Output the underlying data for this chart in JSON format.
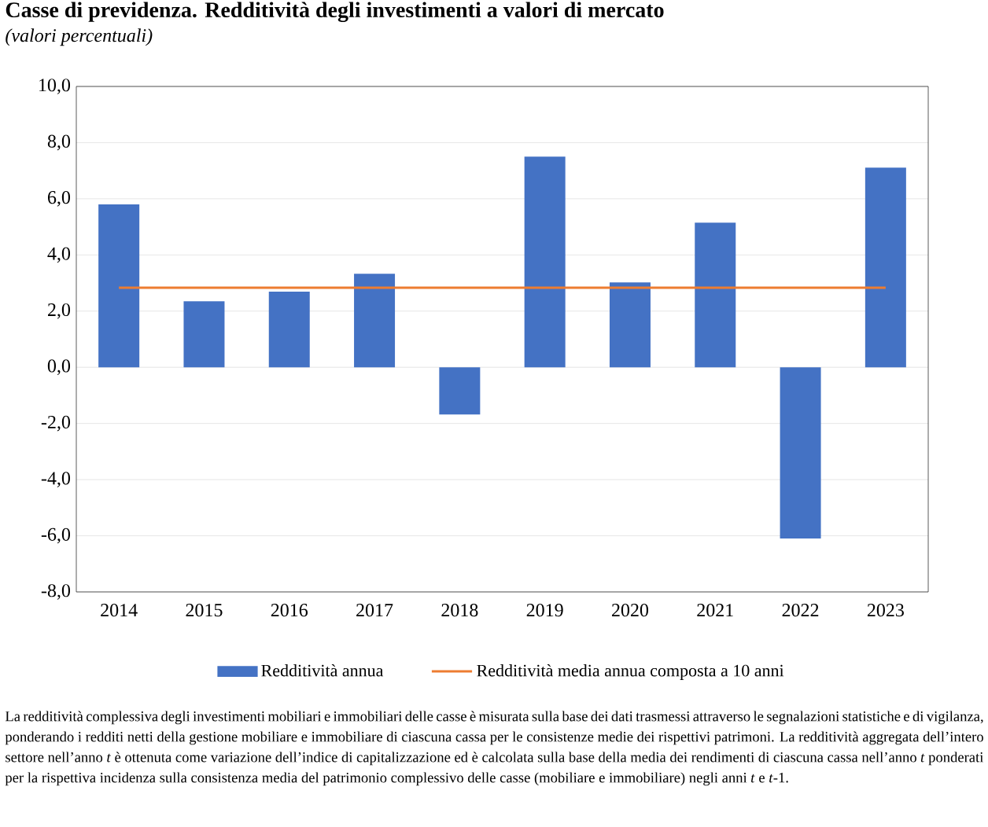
{
  "chart_data": {
    "type": "bar",
    "title": "Casse di previdenza. Redditività degli investimenti a valori di mercato",
    "subtitle": "(valori percentuali)",
    "categories": [
      "2014",
      "2015",
      "2016",
      "2017",
      "2018",
      "2019",
      "2020",
      "2021",
      "2022",
      "2023"
    ],
    "series": [
      {
        "name": "Redditività annua",
        "color": "#4472c4",
        "values": [
          5.8,
          2.35,
          2.69,
          3.33,
          -1.68,
          7.5,
          3.02,
          5.15,
          -6.1,
          7.11
        ]
      },
      {
        "name": "Redditività media annua composta a 10 anni",
        "type": "line",
        "color": "#ed7d31",
        "values": [
          2.83,
          2.83,
          2.83,
          2.83,
          2.83,
          2.83,
          2.83,
          2.83,
          2.83,
          2.83
        ]
      }
    ],
    "ylim": [
      -8,
      10
    ],
    "yticks": [
      {
        "value": -8,
        "label": "-8,0"
      },
      {
        "value": -6,
        "label": "-6,0"
      },
      {
        "value": -4,
        "label": "-4,0"
      },
      {
        "value": -2,
        "label": "-2,0"
      },
      {
        "value": 0,
        "label": "0,0"
      },
      {
        "value": 2,
        "label": "2,0"
      },
      {
        "value": 4,
        "label": "4,0"
      },
      {
        "value": 6,
        "label": "6,0"
      },
      {
        "value": 8,
        "label": "8,0"
      },
      {
        "value": 10,
        "label": "10,0"
      }
    ],
    "grid": "y",
    "legend": "bottom",
    "annotations": [
      "La redditività complessiva degli investimenti mobiliari e immobiliari delle casse è misurata sulla base dei dati trasmessi attraverso le segnalazioni statistiche e di vigilanza, ponderando i redditi netti della gestione mobiliare e immobiliare di ciascuna cassa per le consistenze medie dei rispettivi patrimoni. La redditività aggregata dell’intero settore nell’anno *t* è ottenuta come variazione dell’indice di capitalizzazione ed è calcolata sulla base della media dei rendimenti di ciascuna cassa nell’anno *t* ponderati per la rispettiva incidenza sulla consistenza media del patrimonio complessivo delle casse (mobiliare e immobiliare) negli anni *t* e *t*-1."
    ]
  }
}
